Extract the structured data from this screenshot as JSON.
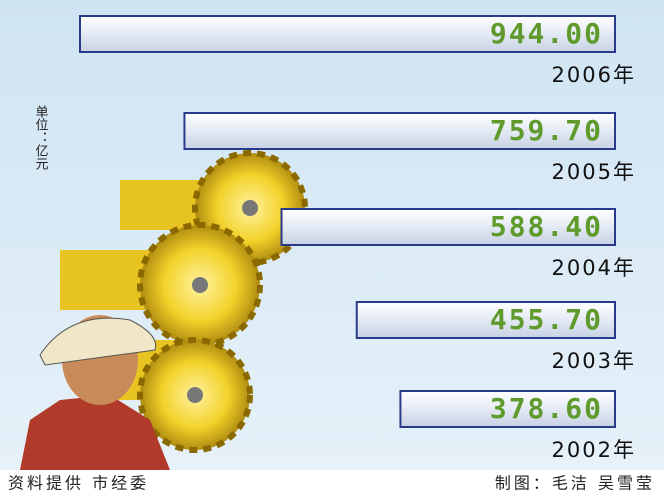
{
  "chart_data": {
    "type": "bar",
    "orientation": "horizontal",
    "categories": [
      "2006年",
      "2005年",
      "2004年",
      "2003年",
      "2002年"
    ],
    "values": [
      944.0,
      759.7,
      588.4,
      455.7,
      378.6
    ],
    "value_labels": [
      "944.00",
      "759.70",
      "588.40",
      "455.70",
      "378.60"
    ],
    "unit": "单位：亿元",
    "source": "资料提供 市经委",
    "credit": "制图：毛洁 吴雪莹",
    "color": "#e6ecf6"
  }
}
